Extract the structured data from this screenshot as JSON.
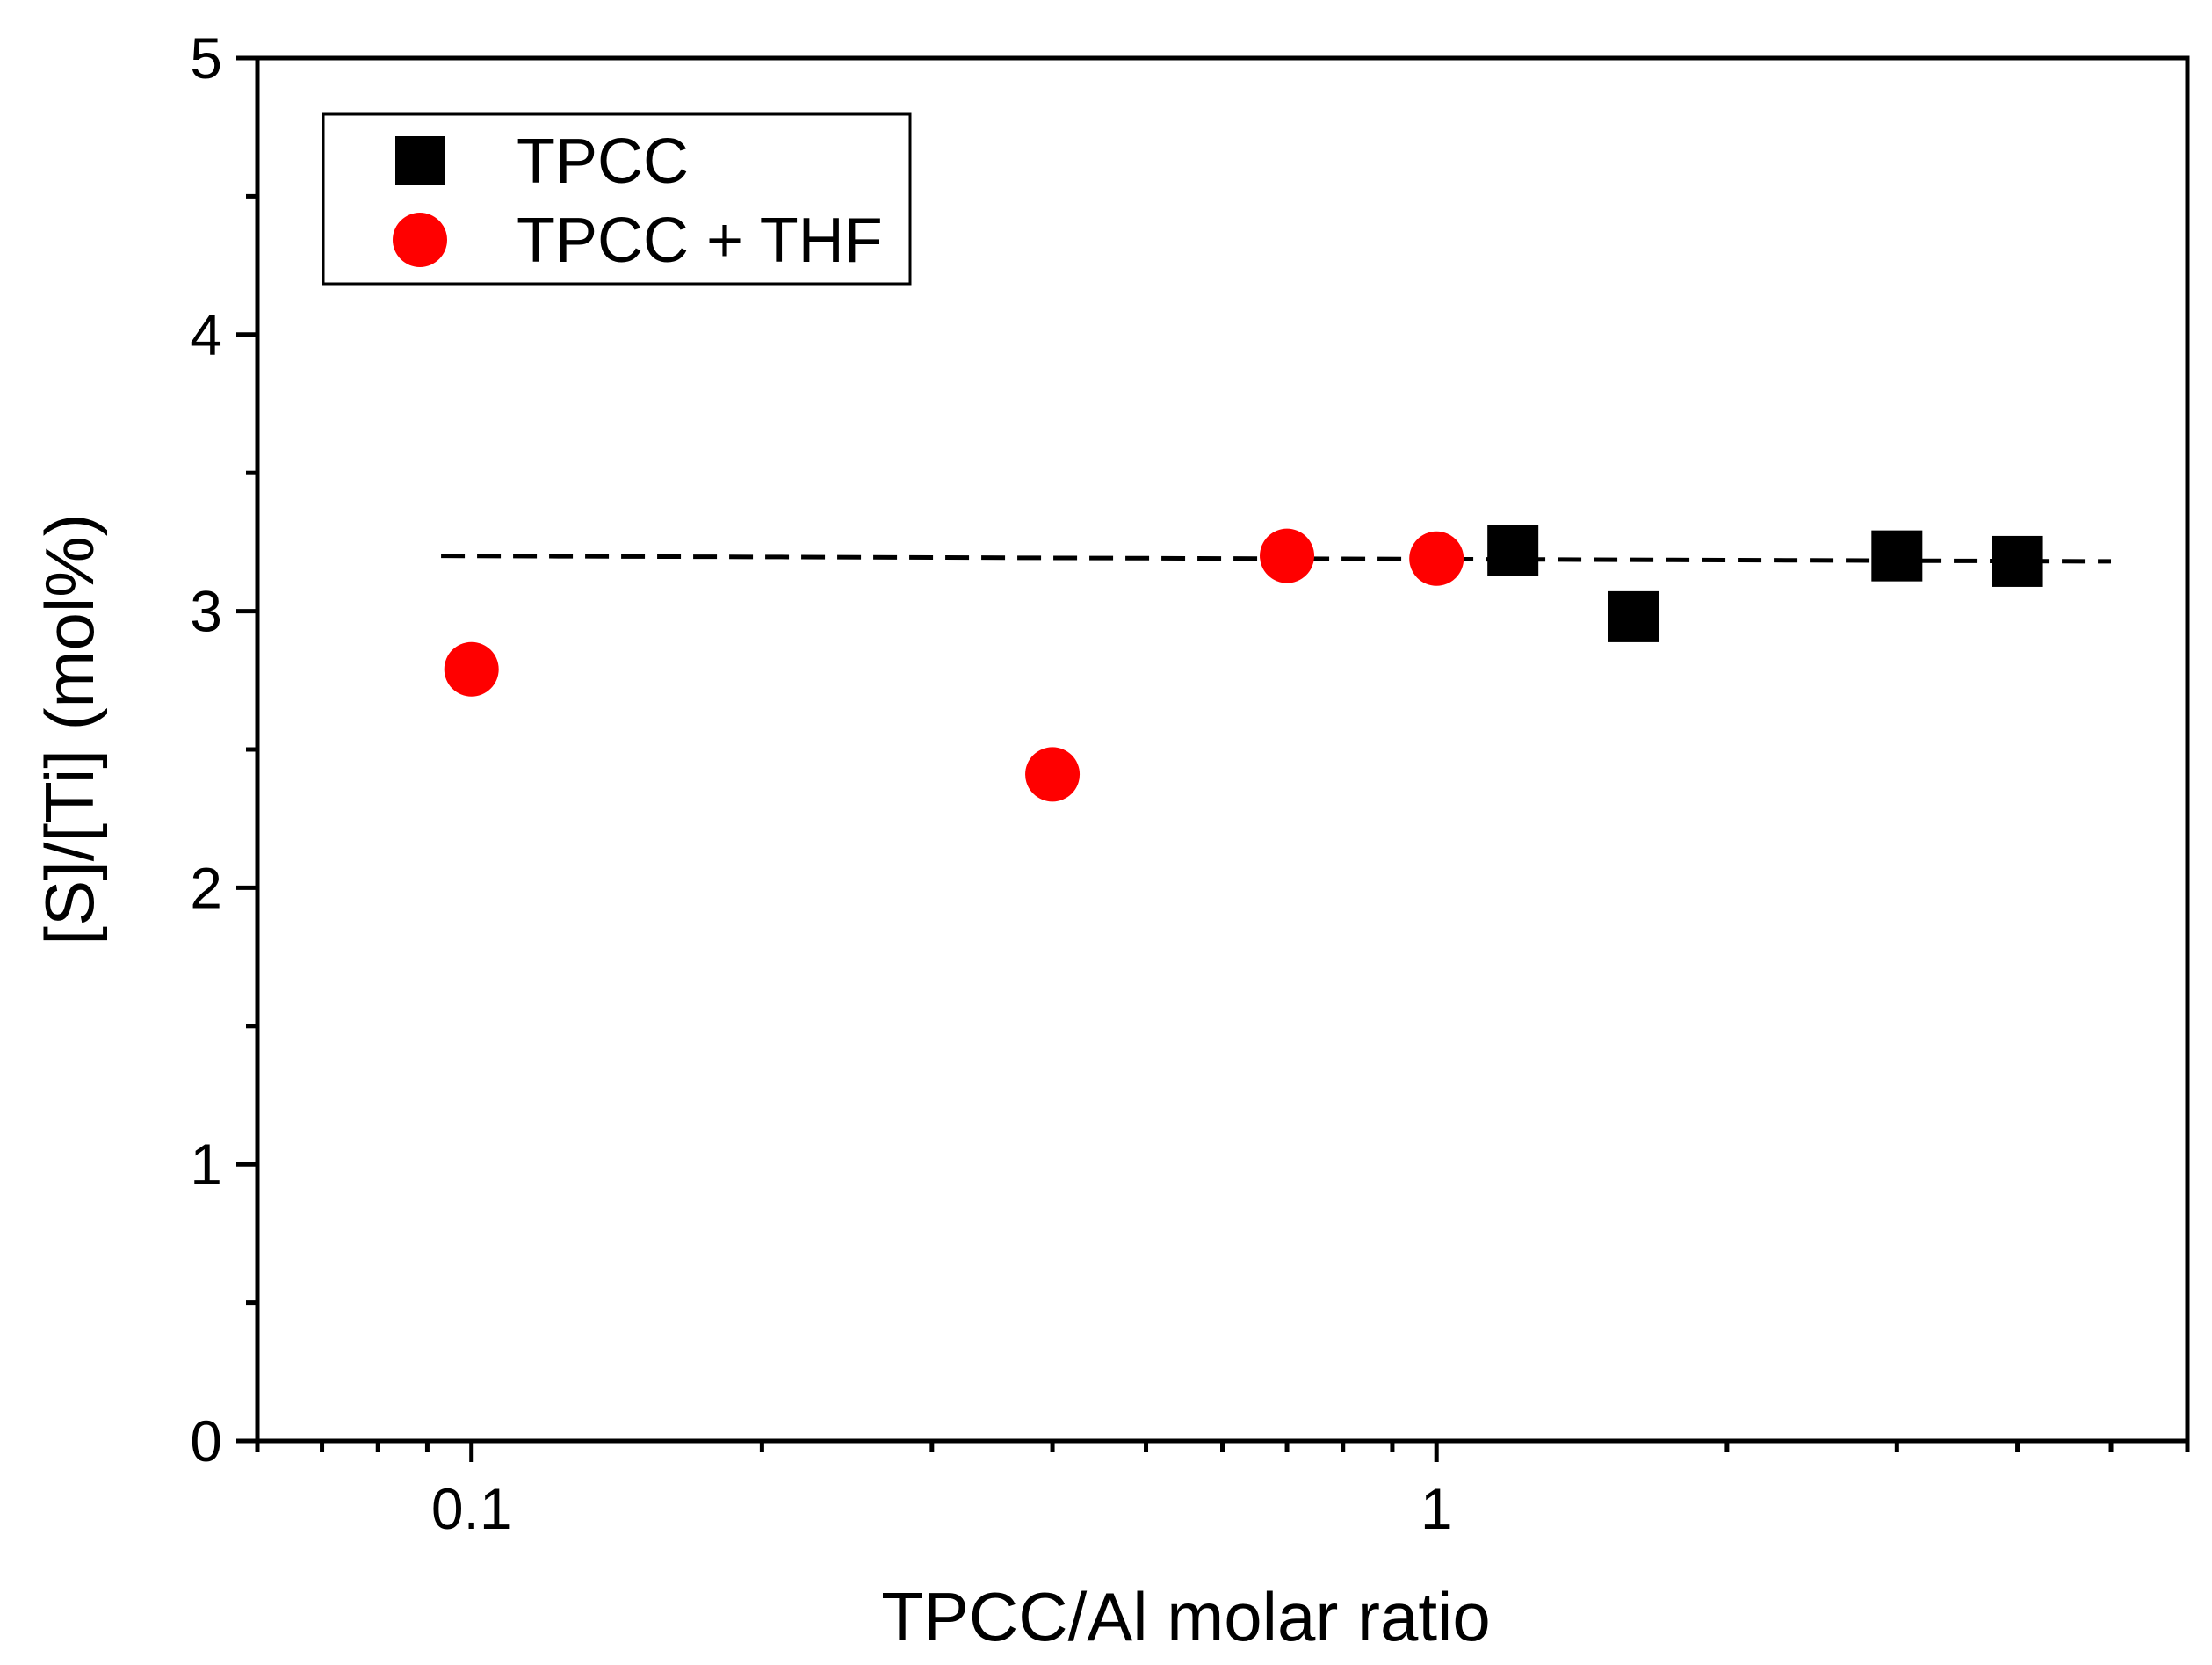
{
  "chart_data": {
    "type": "scatter",
    "title": "",
    "xlabel": "TPCC/Al molar ratio",
    "ylabel": "[S]/[Ti] (mol%)",
    "xscale": "log",
    "xlim": [
      0.06,
      6
    ],
    "ylim": [
      0,
      5
    ],
    "x_ticks": [
      {
        "value": 0.1,
        "label": "0.1"
      },
      {
        "value": 1,
        "label": "1"
      }
    ],
    "y_ticks": [
      {
        "value": 0,
        "label": "0"
      },
      {
        "value": 1,
        "label": "1"
      },
      {
        "value": 2,
        "label": "2"
      },
      {
        "value": 3,
        "label": "3"
      },
      {
        "value": 4,
        "label": "4"
      },
      {
        "value": 5,
        "label": "5"
      }
    ],
    "legend_position": "top-left",
    "series": [
      {
        "name": "TPCC",
        "marker": "square",
        "color": "#000000",
        "points": [
          {
            "x": 1.2,
            "y": 3.22
          },
          {
            "x": 1.6,
            "y": 2.98
          },
          {
            "x": 3.0,
            "y": 3.2
          },
          {
            "x": 4.0,
            "y": 3.18
          }
        ]
      },
      {
        "name": "TPCC + THF",
        "marker": "circle",
        "color": "#ff0000",
        "points": [
          {
            "x": 0.1,
            "y": 2.79
          },
          {
            "x": 0.4,
            "y": 2.41
          },
          {
            "x": 0.7,
            "y": 3.2
          },
          {
            "x": 1.0,
            "y": 3.19
          }
        ]
      }
    ],
    "reference_line": {
      "style": "dashed",
      "color": "#000000",
      "x_start": 0.093,
      "x_end": 5.0,
      "y_start": 3.2,
      "y_end": 3.18
    }
  }
}
